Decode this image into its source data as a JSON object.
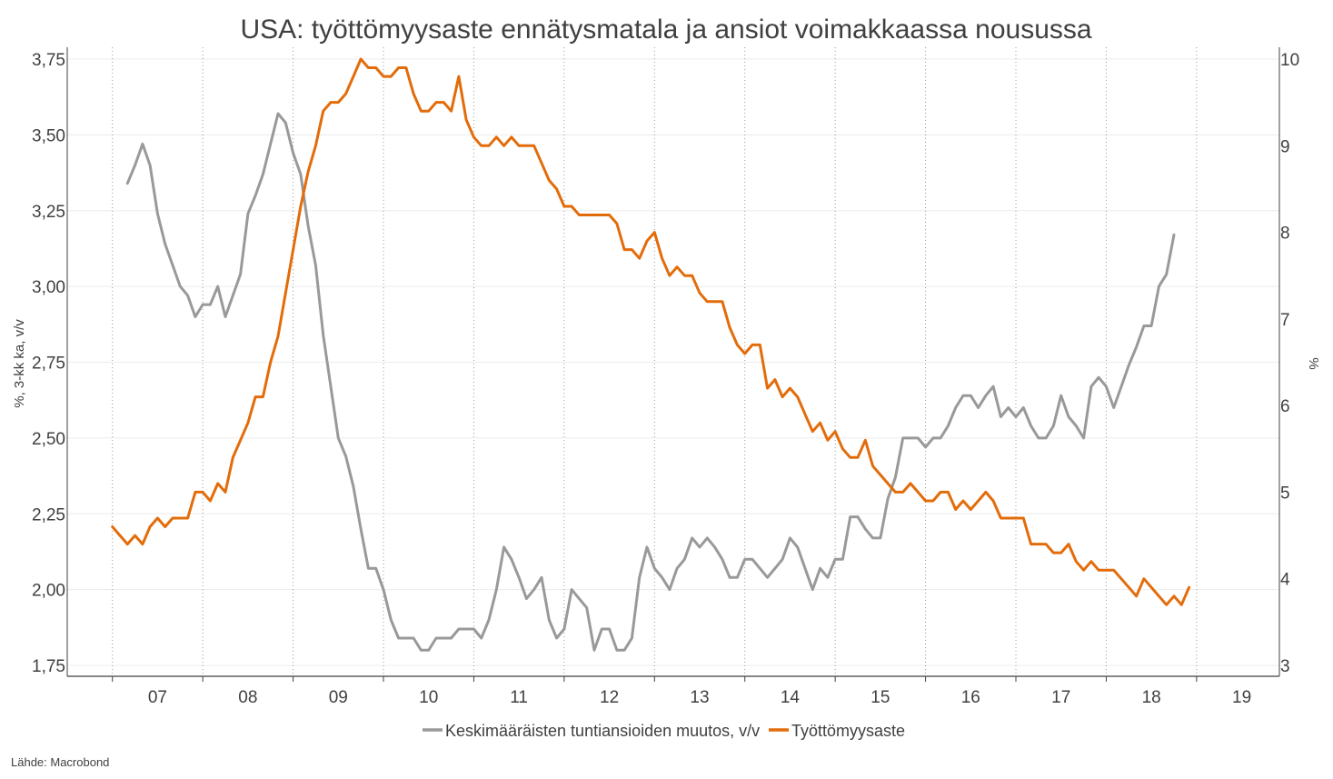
{
  "chart_data": {
    "type": "line",
    "title": "USA: työttömyysaste ennätysmatala ja ansiot voimakkaassa nousussa",
    "source": "Lähde: Macrobond",
    "y_left_label": "%, 3-kk ka, v/v",
    "y_right_label": "%",
    "x_ticks": [
      "07",
      "08",
      "09",
      "10",
      "11",
      "12",
      "13",
      "14",
      "15",
      "16",
      "17",
      "18",
      "19"
    ],
    "y_left_ticks": [
      "1,75",
      "2,00",
      "2,25",
      "2,50",
      "2,75",
      "3,00",
      "3,25",
      "3,50",
      "3,75"
    ],
    "y_right_ticks": [
      "3",
      "4",
      "5",
      "6",
      "7",
      "8",
      "9",
      "10"
    ],
    "y_left_range": [
      1.75,
      3.75
    ],
    "y_right_range": [
      3,
      10
    ],
    "x_range": [
      "2006-07",
      "2019-12"
    ],
    "grid": true,
    "legend_position": "bottom",
    "series": [
      {
        "name": "Keskimääräisten tuntiansioiden muutos, v/v",
        "axis": "left",
        "color": "#999999",
        "start": "2007-03",
        "values": [
          3.34,
          3.4,
          3.47,
          3.4,
          3.24,
          3.14,
          3.07,
          3.0,
          2.97,
          2.9,
          2.94,
          2.94,
          3.0,
          2.9,
          2.97,
          3.04,
          3.24,
          3.3,
          3.37,
          3.47,
          3.57,
          3.54,
          3.44,
          3.37,
          3.2,
          3.07,
          2.84,
          2.67,
          2.5,
          2.44,
          2.34,
          2.2,
          2.07,
          2.07,
          2.0,
          1.9,
          1.84,
          1.84,
          1.84,
          1.8,
          1.8,
          1.84,
          1.84,
          1.84,
          1.87,
          1.87,
          1.87,
          1.84,
          1.9,
          2.0,
          2.14,
          2.1,
          2.04,
          1.97,
          2.0,
          2.04,
          1.9,
          1.84,
          1.87,
          2.0,
          1.97,
          1.94,
          1.8,
          1.87,
          1.87,
          1.8,
          1.8,
          1.84,
          2.04,
          2.14,
          2.07,
          2.04,
          2.0,
          2.07,
          2.1,
          2.17,
          2.14,
          2.17,
          2.14,
          2.1,
          2.04,
          2.04,
          2.1,
          2.1,
          2.07,
          2.04,
          2.07,
          2.1,
          2.17,
          2.14,
          2.07,
          2.0,
          2.07,
          2.04,
          2.1,
          2.1,
          2.24,
          2.24,
          2.2,
          2.17,
          2.17,
          2.3,
          2.37,
          2.5,
          2.5,
          2.5,
          2.47,
          2.5,
          2.5,
          2.54,
          2.6,
          2.64,
          2.64,
          2.6,
          2.64,
          2.67,
          2.57,
          2.6,
          2.57,
          2.6,
          2.54,
          2.5,
          2.5,
          2.54,
          2.64,
          2.57,
          2.54,
          2.5,
          2.67,
          2.7,
          2.67,
          2.6,
          2.67,
          2.74,
          2.8,
          2.87,
          2.87,
          3.0,
          3.04,
          3.17
        ]
      },
      {
        "name": "Työttömyysaste",
        "axis": "right",
        "color": "#E36C0A",
        "start": "2007-01",
        "values": [
          4.6,
          4.5,
          4.4,
          4.5,
          4.4,
          4.6,
          4.7,
          4.6,
          4.7,
          4.7,
          4.7,
          5.0,
          5.0,
          4.9,
          5.1,
          5.0,
          5.4,
          5.6,
          5.8,
          6.1,
          6.1,
          6.5,
          6.8,
          7.3,
          7.8,
          8.3,
          8.7,
          9.0,
          9.4,
          9.5,
          9.5,
          9.6,
          9.8,
          10.0,
          9.9,
          9.9,
          9.8,
          9.8,
          9.9,
          9.9,
          9.6,
          9.4,
          9.4,
          9.5,
          9.5,
          9.4,
          9.8,
          9.3,
          9.1,
          9.0,
          9.0,
          9.1,
          9.0,
          9.1,
          9.0,
          9.0,
          9.0,
          8.8,
          8.6,
          8.5,
          8.3,
          8.3,
          8.2,
          8.2,
          8.2,
          8.2,
          8.2,
          8.1,
          7.8,
          7.8,
          7.7,
          7.9,
          8.0,
          7.7,
          7.5,
          7.6,
          7.5,
          7.5,
          7.3,
          7.2,
          7.2,
          7.2,
          6.9,
          6.7,
          6.6,
          6.7,
          6.7,
          6.2,
          6.3,
          6.1,
          6.2,
          6.1,
          5.9,
          5.7,
          5.8,
          5.6,
          5.7,
          5.5,
          5.4,
          5.4,
          5.6,
          5.3,
          5.2,
          5.1,
          5.0,
          5.0,
          5.1,
          5.0,
          4.9,
          4.9,
          5.0,
          5.0,
          4.8,
          4.9,
          4.8,
          4.9,
          5.0,
          4.9,
          4.7,
          4.7,
          4.7,
          4.7,
          4.4,
          4.4,
          4.4,
          4.3,
          4.3,
          4.4,
          4.2,
          4.1,
          4.2,
          4.1,
          4.1,
          4.1,
          4.0,
          3.9,
          3.8,
          4.0,
          3.9,
          3.8,
          3.7,
          3.8,
          3.7,
          3.9
        ]
      }
    ]
  }
}
